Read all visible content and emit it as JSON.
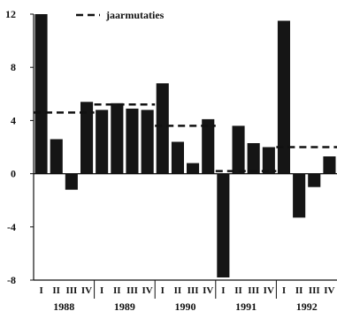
{
  "chart_data": {
    "type": "bar",
    "title": "",
    "xlabel": "",
    "ylabel": "",
    "ylim": [
      -8,
      12
    ],
    "yticks": [
      12,
      8,
      4,
      0,
      -4,
      -8
    ],
    "quarter_labels": [
      "I",
      "II",
      "III",
      "IV"
    ],
    "years": [
      "1988",
      "1989",
      "1990",
      "1991",
      "1992"
    ],
    "categories": [
      "1988 I",
      "1988 II",
      "1988 III",
      "1988 IV",
      "1989 I",
      "1989 II",
      "1989 III",
      "1989 IV",
      "1990 I",
      "1990 II",
      "1990 III",
      "1990 IV",
      "1991 I",
      "1991 II",
      "1991 III",
      "1991 IV",
      "1992 I",
      "1992 II",
      "1992 III",
      "1992 IV"
    ],
    "series": [
      {
        "values": [
          12.0,
          2.6,
          -1.2,
          5.4,
          4.8,
          5.3,
          4.9,
          4.8,
          6.8,
          2.4,
          0.8,
          4.1,
          -7.8,
          3.6,
          2.3,
          2.0,
          11.5,
          -3.3,
          -1.0,
          1.3
        ]
      }
    ],
    "annual_changes": {
      "name": "jaarmutaties",
      "values": [
        4.6,
        5.2,
        3.6,
        0.2,
        2.0
      ]
    },
    "legend": {
      "position": "top",
      "entries": [
        "jaarmutaties"
      ]
    },
    "colors": {
      "bar": "#151515",
      "line": "#111111",
      "axis": "#111111"
    },
    "grid": false
  }
}
